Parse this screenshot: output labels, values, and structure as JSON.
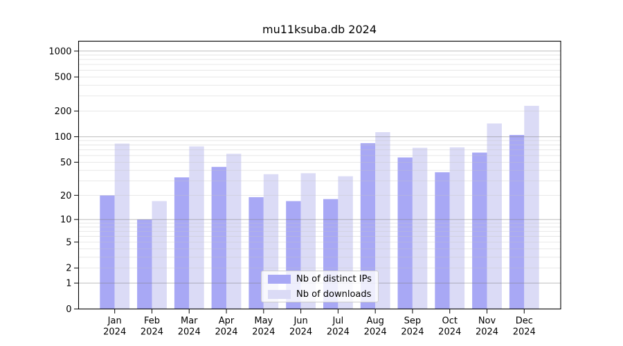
{
  "chart_data": {
    "type": "bar",
    "title": "mu11ksuba.db 2024",
    "year": "2024",
    "categories": [
      "Jan",
      "Feb",
      "Mar",
      "Apr",
      "May",
      "Jun",
      "Jul",
      "Aug",
      "Sep",
      "Oct",
      "Nov",
      "Dec"
    ],
    "series": [
      {
        "name": "Nb of distinct IPs",
        "key": "distinct-ips",
        "color": "#a8a8f5",
        "values": [
          20,
          10,
          33,
          44,
          19,
          17,
          18,
          84,
          57,
          38,
          65,
          105
        ]
      },
      {
        "name": "Nb of downloads",
        "key": "downloads",
        "color": "#dbdbf6",
        "values": [
          83,
          17,
          77,
          63,
          36,
          37,
          34,
          113,
          74,
          75,
          143,
          230
        ]
      }
    ],
    "y_axis": {
      "scale": "log10(1+v)",
      "ticks": [
        0,
        1,
        2,
        5,
        10,
        20,
        50,
        100,
        200,
        500,
        1000
      ],
      "top_value": 1300
    },
    "x_axis": {
      "tick_label_lines": 2
    },
    "legend": {
      "entries": [
        "Nb of distinct IPs",
        "Nb of downloads"
      ],
      "position": "bottom-center"
    },
    "grid": {
      "on": true
    }
  }
}
